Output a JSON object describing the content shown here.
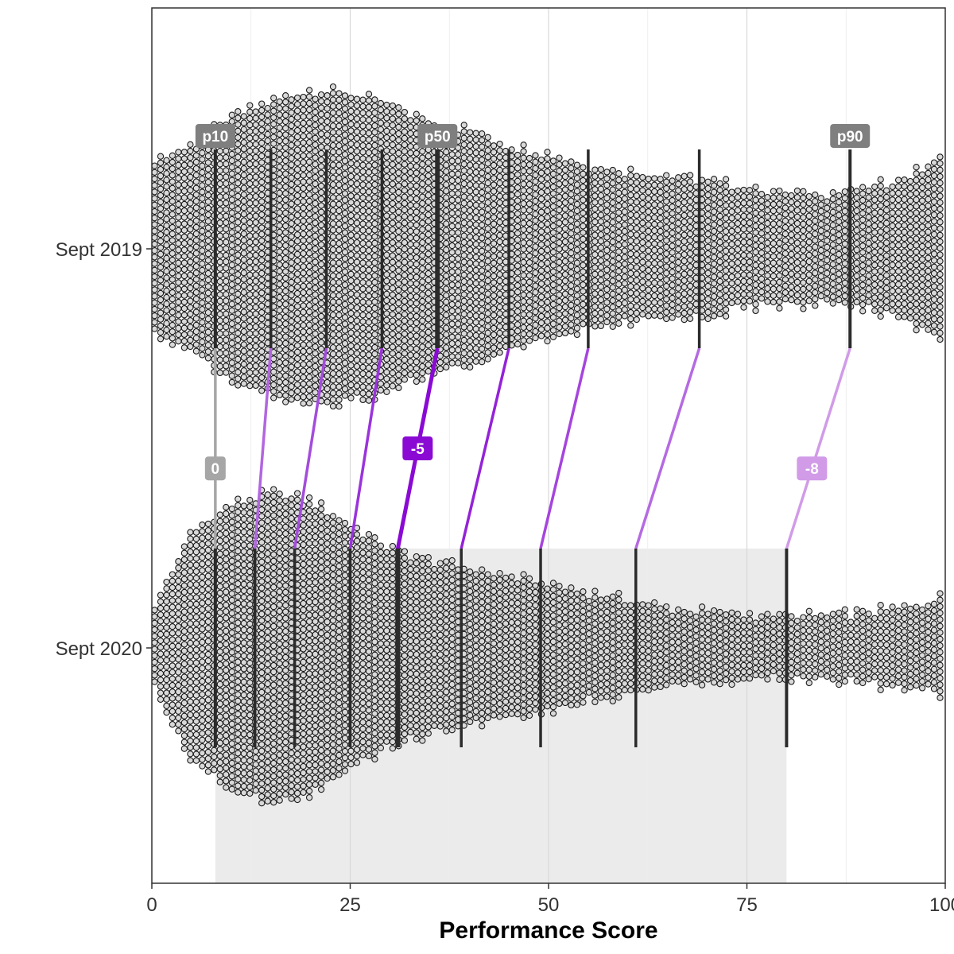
{
  "chart_data": {
    "type": "beeswarm",
    "xlabel": "Performance Score",
    "xlim": [
      0,
      100
    ],
    "x_ticks": [
      0,
      25,
      50,
      75,
      100
    ],
    "categories": [
      "Sept 2019",
      "Sept 2020"
    ],
    "grid": true,
    "background": "#ffffff",
    "point_fill": "#d9d9d9",
    "point_stroke": "#1a1a1a",
    "percentiles": {
      "levels": [
        10,
        20,
        30,
        40,
        50,
        60,
        70,
        80,
        90
      ],
      "labelled": [
        {
          "level": 10,
          "label": "p10"
        },
        {
          "level": 50,
          "label": "p50"
        },
        {
          "level": 90,
          "label": "p90"
        }
      ],
      "sept_2019": [
        8,
        15,
        22,
        29,
        36,
        45,
        55,
        69,
        88
      ],
      "sept_2020": [
        8,
        13,
        18,
        25,
        31,
        39,
        49,
        61,
        80
      ]
    },
    "deltas": [
      {
        "level": 10,
        "label": "0",
        "color": "#a6a6a6"
      },
      {
        "level": 50,
        "label": "-5",
        "color": "#8a0ad4"
      },
      {
        "level": 90,
        "label": "-8",
        "color": "#d19be8"
      }
    ],
    "connector_colors": [
      "#a6a6a6",
      "#b266e0",
      "#a44cdc",
      "#9a33dc",
      "#8a0ad4",
      "#9422d8",
      "#a644de",
      "#b56ae2",
      "#d19be8"
    ],
    "highlight_band": {
      "from": 8,
      "to": 80,
      "color": "#ebebeb"
    },
    "distribution_width": {
      "x": [
        0,
        5,
        10,
        15,
        20,
        25,
        30,
        35,
        40,
        45,
        50,
        55,
        60,
        65,
        70,
        75,
        80,
        85,
        90,
        95,
        100
      ],
      "sept_2019": [
        220,
        260,
        330,
        370,
        400,
        390,
        360,
        320,
        300,
        260,
        240,
        210,
        195,
        185,
        170,
        155,
        140,
        140,
        150,
        180,
        230
      ],
      "sept_2020": [
        90,
        290,
        360,
        390,
        370,
        310,
        250,
        220,
        200,
        180,
        160,
        140,
        120,
        100,
        90,
        85,
        80,
        80,
        90,
        100,
        130
      ]
    }
  }
}
